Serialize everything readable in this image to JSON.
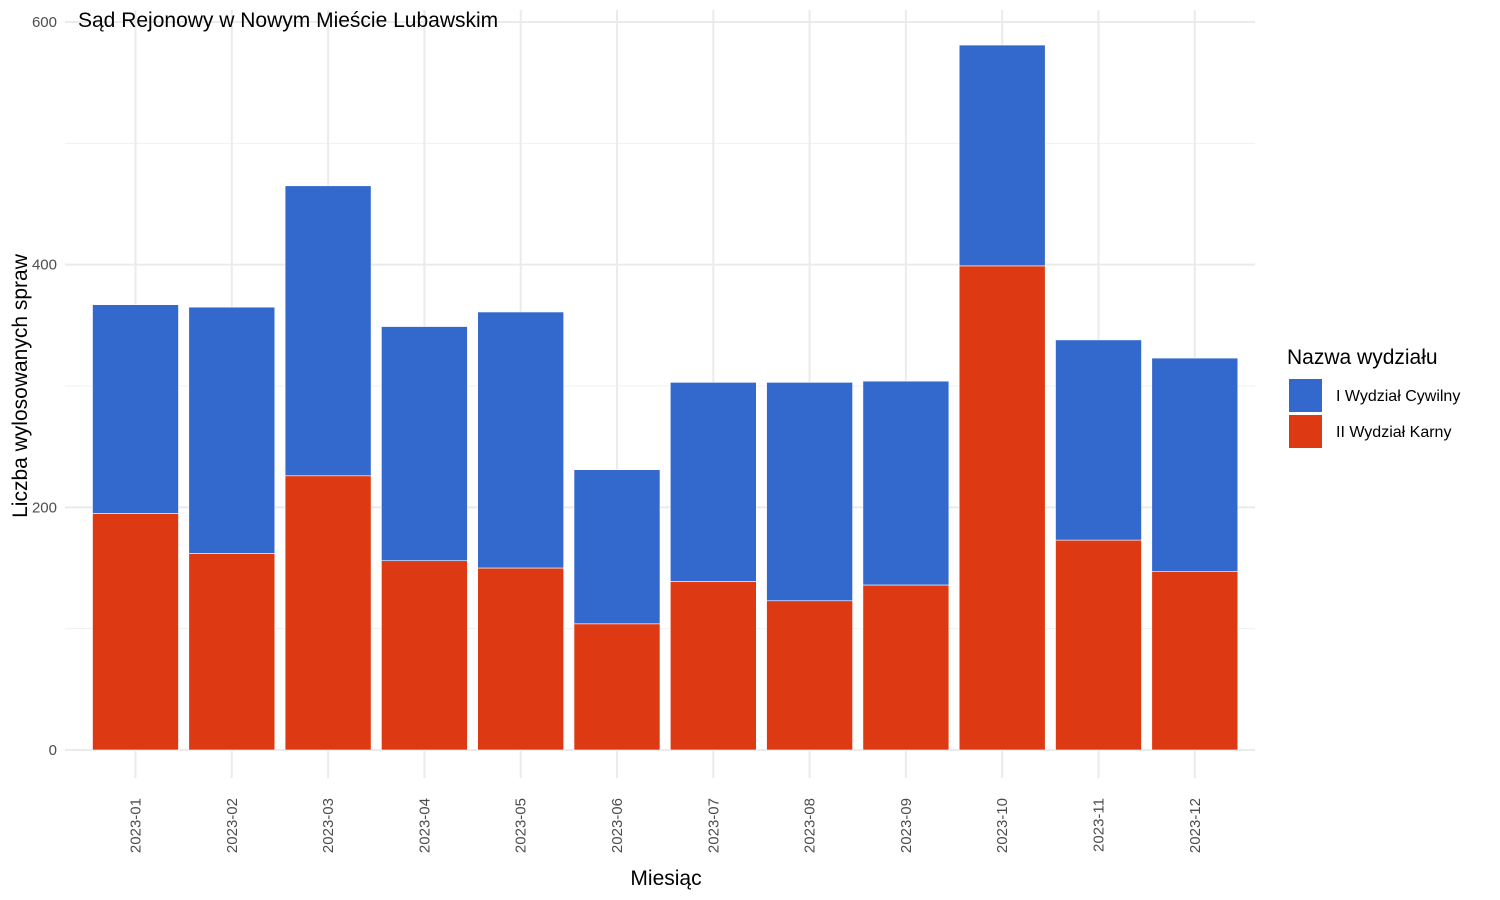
{
  "chart_data": {
    "type": "bar",
    "stacked": true,
    "title": "Sąd Rejonowy w Nowym Mieście Lubawskim",
    "xlabel": "Miesiąc",
    "ylabel": "Liczba wylosowanych spraw",
    "ylim": [
      0,
      600
    ],
    "yticks": [
      "0",
      "200",
      "400",
      "600"
    ],
    "grid": true,
    "legend_position": "right",
    "legend_title": "Nazwa wydziału",
    "categories": [
      "2023-01",
      "2023-02",
      "2023-03",
      "2023-04",
      "2023-05",
      "2023-06",
      "2023-07",
      "2023-08",
      "2023-09",
      "2023-10",
      "2023-11",
      "2023-12"
    ],
    "series": [
      {
        "name": "II Wydział Karny",
        "color": "#DD3A13",
        "values": [
          195,
          162,
          226,
          156,
          150,
          104,
          139,
          123,
          136,
          399,
          173,
          147
        ]
      },
      {
        "name": "I Wydział Cywilny",
        "color": "#3368CC",
        "values": [
          172,
          203,
          239,
          193,
          211,
          127,
          164,
          180,
          168,
          182,
          165,
          176
        ]
      }
    ],
    "legend_order": [
      1,
      0
    ]
  }
}
